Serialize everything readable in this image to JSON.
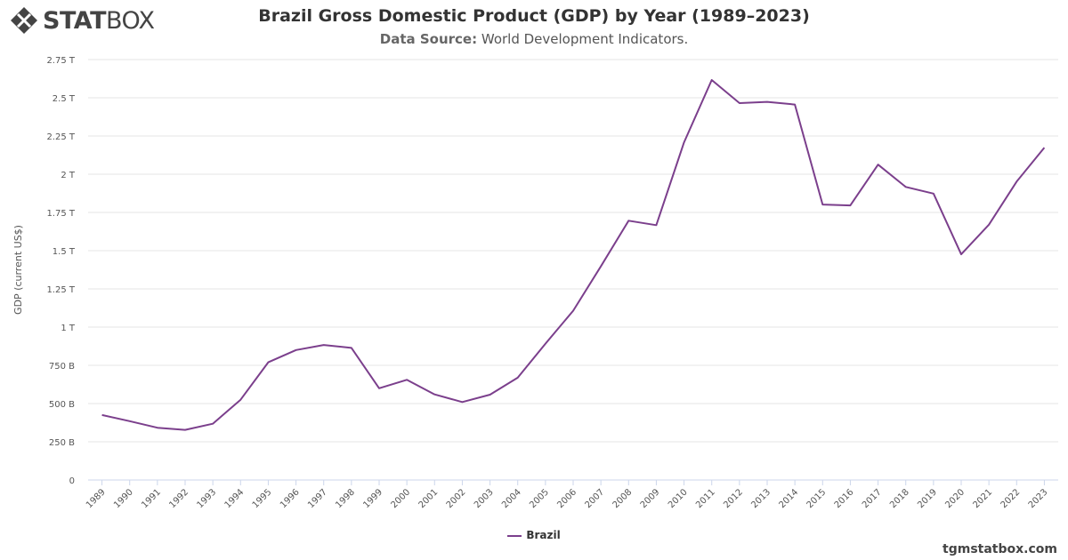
{
  "brand": {
    "logo_bold": "STAT",
    "logo_light": "BOX",
    "footer_site": "tgmstatbox.com",
    "accent": "#7b3f8c"
  },
  "header": {
    "title": "Brazil Gross Domestic Product (GDP) by Year (1989–2023)",
    "source_label": "Data Source:",
    "source_value": "World Development Indicators."
  },
  "chart_data": {
    "type": "line",
    "title": "Brazil Gross Domestic Product (GDP) by Year (1989–2023)",
    "ylabel": "GDP (current US$)",
    "xlabel": "",
    "ylim": [
      0,
      2750000000000
    ],
    "yticks": [
      {
        "value": 0,
        "label": "0"
      },
      {
        "value": 250000000000,
        "label": "250 B"
      },
      {
        "value": 500000000000,
        "label": "500 B"
      },
      {
        "value": 750000000000,
        "label": "750 B"
      },
      {
        "value": 1000000000000,
        "label": "1 T"
      },
      {
        "value": 1250000000000,
        "label": "1.25 T"
      },
      {
        "value": 1500000000000,
        "label": "1.5 T"
      },
      {
        "value": 1750000000000,
        "label": "1.75 T"
      },
      {
        "value": 2000000000000,
        "label": "2 T"
      },
      {
        "value": 2250000000000,
        "label": "2.25 T"
      },
      {
        "value": 2500000000000,
        "label": "2.5 T"
      },
      {
        "value": 2750000000000,
        "label": "2.75 T"
      }
    ],
    "categories": [
      "1989",
      "1990",
      "1991",
      "1992",
      "1993",
      "1994",
      "1995",
      "1996",
      "1997",
      "1998",
      "1999",
      "2000",
      "2001",
      "2002",
      "2003",
      "2004",
      "2005",
      "2006",
      "2007",
      "2008",
      "2009",
      "2010",
      "2011",
      "2012",
      "2013",
      "2014",
      "2015",
      "2016",
      "2017",
      "2018",
      "2019",
      "2020",
      "2021",
      "2022",
      "2023"
    ],
    "grid": true,
    "legend_position": "bottom-center",
    "series": [
      {
        "name": "Brazil",
        "color": "#7b3f8c",
        "values": [
          425000000000,
          385000000000,
          342000000000,
          328000000000,
          368000000000,
          525000000000,
          770000000000,
          850000000000,
          883000000000,
          864000000000,
          600000000000,
          655000000000,
          560000000000,
          510000000000,
          558000000000,
          669000000000,
          892000000000,
          1107000000000,
          1397000000000,
          1696000000000,
          1667000000000,
          2209000000000,
          2616000000000,
          2465000000000,
          2473000000000,
          2456000000000,
          1802000000000,
          1796000000000,
          2063000000000,
          1917000000000,
          1873000000000,
          1476000000000,
          1670000000000,
          1952000000000,
          2174000000000
        ]
      }
    ]
  }
}
